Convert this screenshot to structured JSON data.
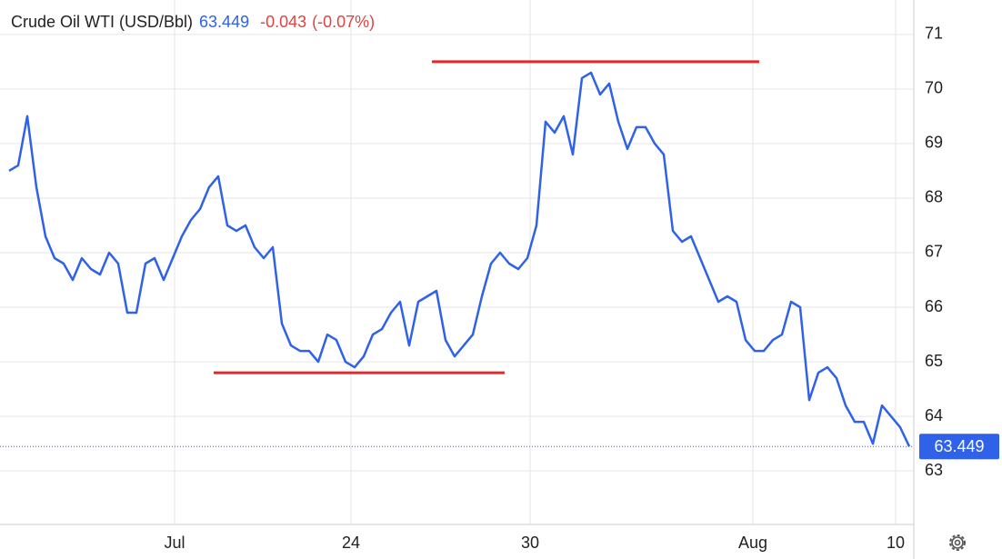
{
  "chart_data": {
    "type": "line",
    "title": "Crude Oil WTI (USD/Bbl)",
    "last_price": 63.449,
    "change": -0.043,
    "change_percent_label": "(-0.07%)",
    "series": [
      {
        "name": "Crude Oil WTI",
        "color": "#2f62e8",
        "values": [
          68.5,
          68.6,
          69.5,
          68.2,
          67.3,
          66.9,
          66.8,
          66.5,
          66.9,
          66.7,
          66.6,
          67.0,
          66.8,
          65.9,
          65.9,
          66.8,
          66.9,
          66.5,
          66.9,
          67.3,
          67.6,
          67.8,
          68.2,
          68.4,
          67.5,
          67.4,
          67.5,
          67.1,
          66.9,
          67.1,
          65.7,
          65.3,
          65.2,
          65.2,
          65.0,
          65.5,
          65.4,
          65.0,
          64.9,
          65.1,
          65.5,
          65.6,
          65.9,
          66.1,
          65.3,
          66.1,
          66.2,
          66.3,
          65.4,
          65.1,
          65.3,
          65.5,
          66.2,
          66.8,
          67.0,
          66.8,
          66.7,
          66.9,
          67.5,
          69.4,
          69.2,
          69.5,
          68.8,
          70.2,
          70.3,
          69.9,
          70.1,
          69.4,
          68.9,
          69.3,
          69.3,
          69.0,
          68.8,
          67.4,
          67.2,
          67.3,
          66.9,
          66.5,
          66.1,
          66.2,
          66.1,
          65.4,
          65.2,
          65.2,
          65.4,
          65.5,
          66.1,
          66.0,
          64.3,
          64.8,
          64.9,
          64.7,
          64.2,
          63.9,
          63.9,
          63.5,
          64.2,
          64.0,
          63.8,
          63.449
        ]
      }
    ],
    "level_lines": [
      {
        "y": 70.5,
        "x": [
          46.5,
          82.5
        ],
        "color": "#e5262b"
      },
      {
        "y": 64.8,
        "x": [
          22.5,
          54.5
        ],
        "color": "#e5262b"
      }
    ],
    "xlim": [
      -1,
      99.5
    ],
    "xticks": [
      {
        "value": 18.2,
        "label": "Jul"
      },
      {
        "value": 37.6,
        "label": "24"
      },
      {
        "value": 57.3,
        "label": "30"
      },
      {
        "value": 81.8,
        "label": "Aug"
      },
      {
        "value": 97.5,
        "label": "10"
      }
    ],
    "ylim": [
      62.02,
      71.63
    ],
    "yticks": [
      63,
      64,
      65,
      66,
      67,
      68,
      69,
      70,
      71
    ],
    "grid": true
  }
}
